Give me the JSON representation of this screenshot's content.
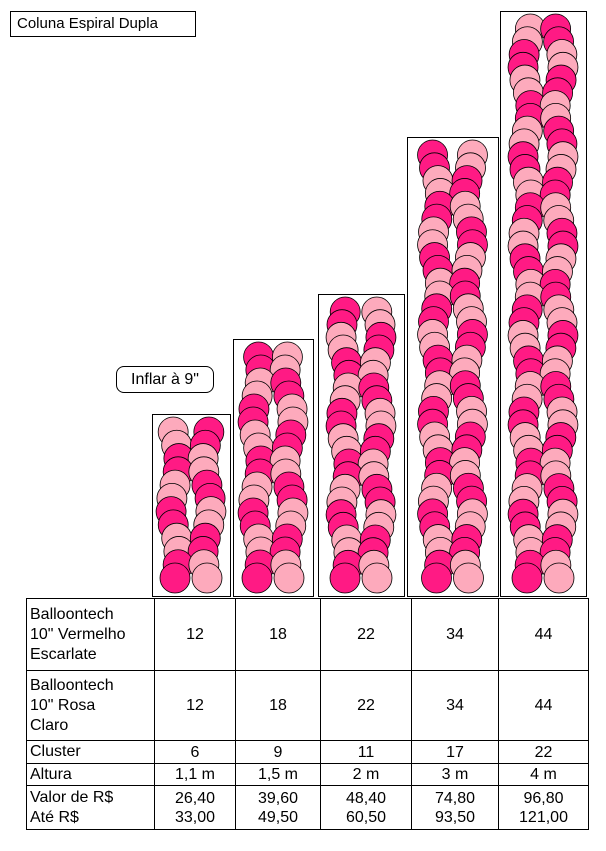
{
  "title": "Coluna Espiral Dupla",
  "inflate_note": "Inflar à 9\"",
  "colors": {
    "scarlet": "#ff1a84",
    "light_pink": "#fdaabc",
    "outline": "#000000"
  },
  "columns": [
    {
      "red": 12,
      "pink": 12,
      "cluster": 6,
      "height": "1,1 m",
      "price_from": "26,40",
      "price_to": "33,00"
    },
    {
      "red": 18,
      "pink": 18,
      "cluster": 9,
      "height": "1,5 m",
      "price_from": "39,60",
      "price_to": "49,50"
    },
    {
      "red": 22,
      "pink": 22,
      "cluster": 11,
      "height": "2 m",
      "price_from": "48,40",
      "price_to": "60,50"
    },
    {
      "red": 34,
      "pink": 34,
      "cluster": 17,
      "height": "3 m",
      "price_from": "74,80",
      "price_to": "93,50"
    },
    {
      "red": 44,
      "pink": 44,
      "cluster": 22,
      "height": "4 m",
      "price_from": "96,80",
      "price_to": "121,00"
    }
  ],
  "table": {
    "row_red_label": [
      "Balloontech",
      "10\" Vermelho",
      "Escarlate"
    ],
    "row_pink_label": [
      "Balloontech",
      "10\" Rosa",
      "Claro"
    ],
    "row_cluster_label": "Cluster",
    "row_height_label": "Altura",
    "row_price_label": [
      "Valor de  R$",
      "Até R$"
    ]
  }
}
